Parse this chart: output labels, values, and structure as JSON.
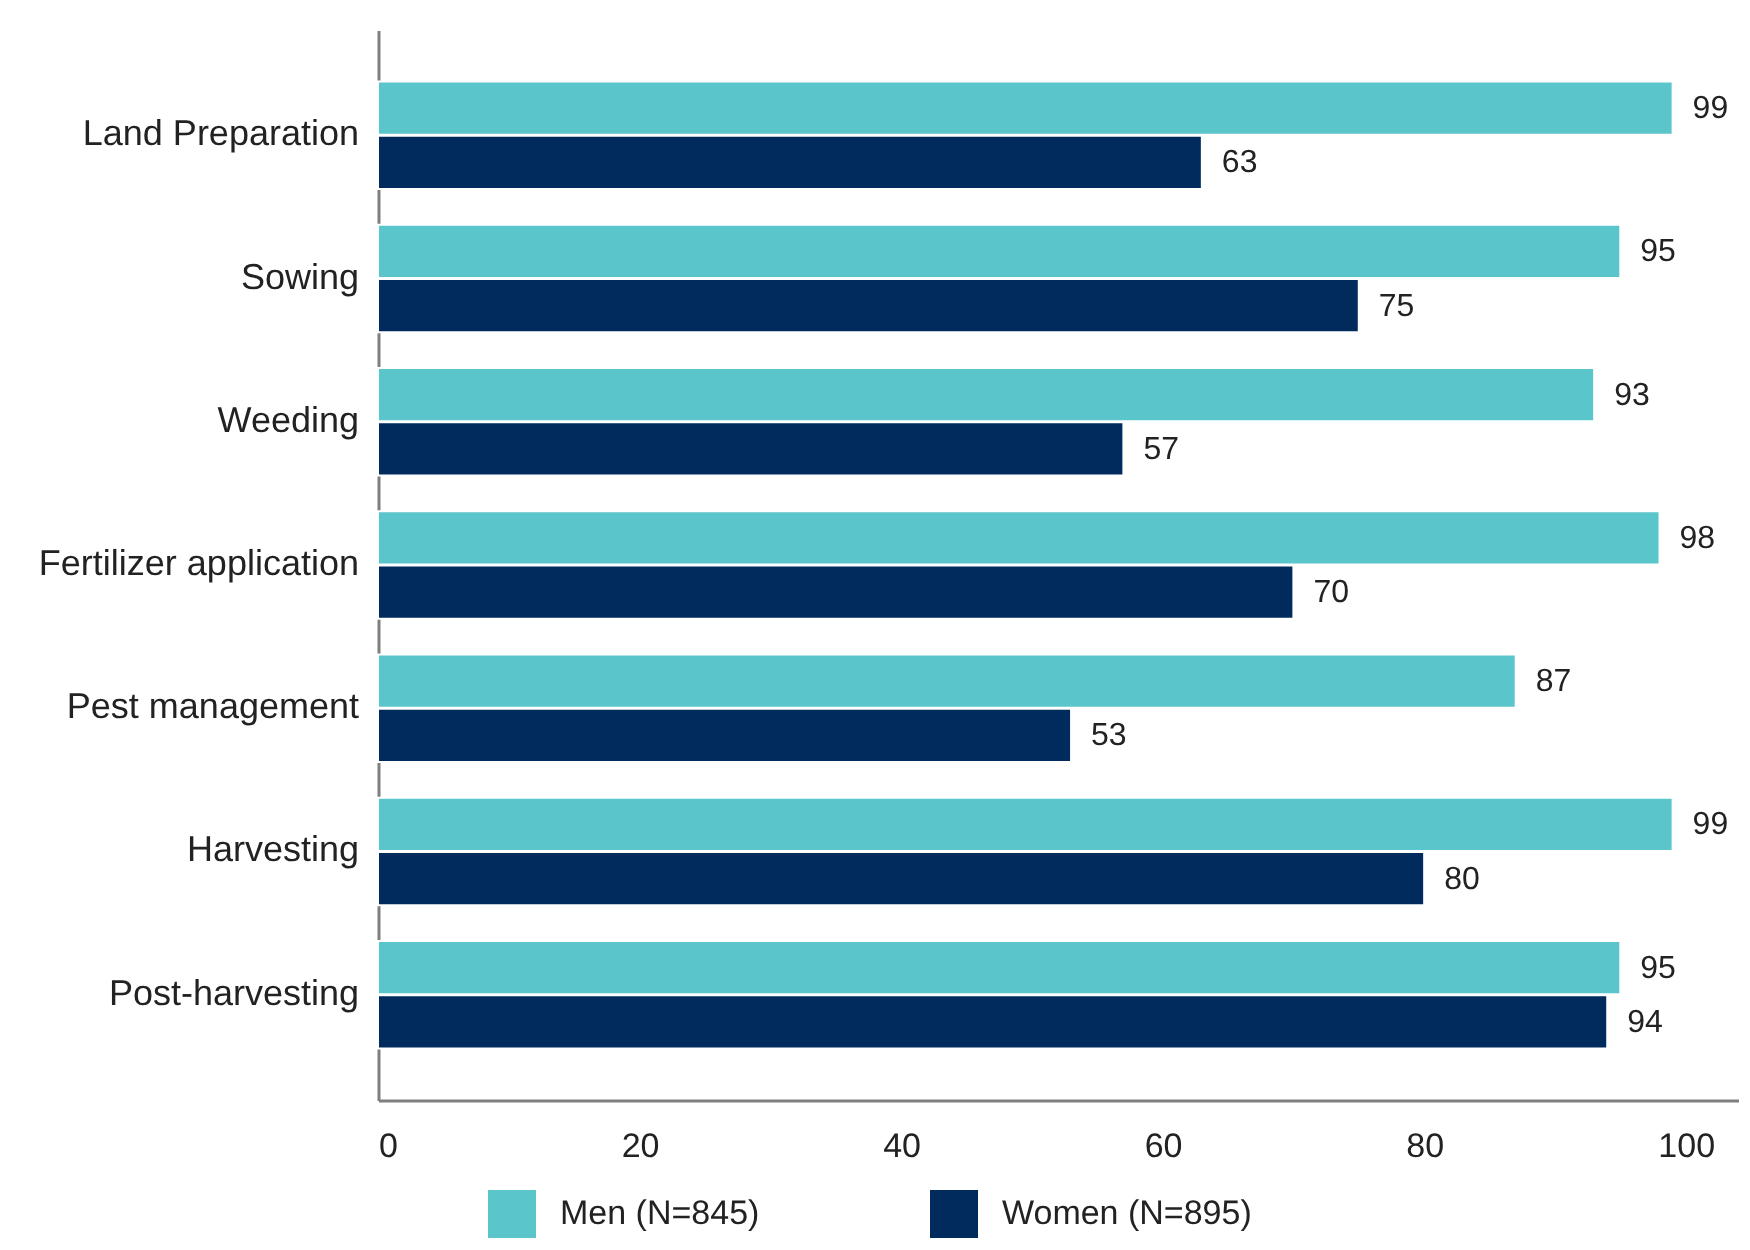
{
  "chart_data": {
    "type": "bar",
    "orientation": "horizontal",
    "categories": [
      "Land Preparation",
      "Sowing",
      "Weeding",
      "Fertilizer application",
      "Pest management",
      "Harvesting",
      "Post-harvesting"
    ],
    "series": [
      {
        "name": "Men (N=845)",
        "color": "#5bc5cc",
        "values": [
          99,
          95,
          93,
          98,
          87,
          99,
          95
        ]
      },
      {
        "name": "Women (N=895)",
        "color": "#002b5c",
        "values": [
          63,
          75,
          57,
          70,
          53,
          80,
          94
        ]
      }
    ],
    "xlim": [
      0,
      104
    ],
    "xticks": [
      0,
      20,
      40,
      60,
      80,
      100
    ],
    "data_labels": true,
    "legend": "bottom",
    "grid": false
  }
}
